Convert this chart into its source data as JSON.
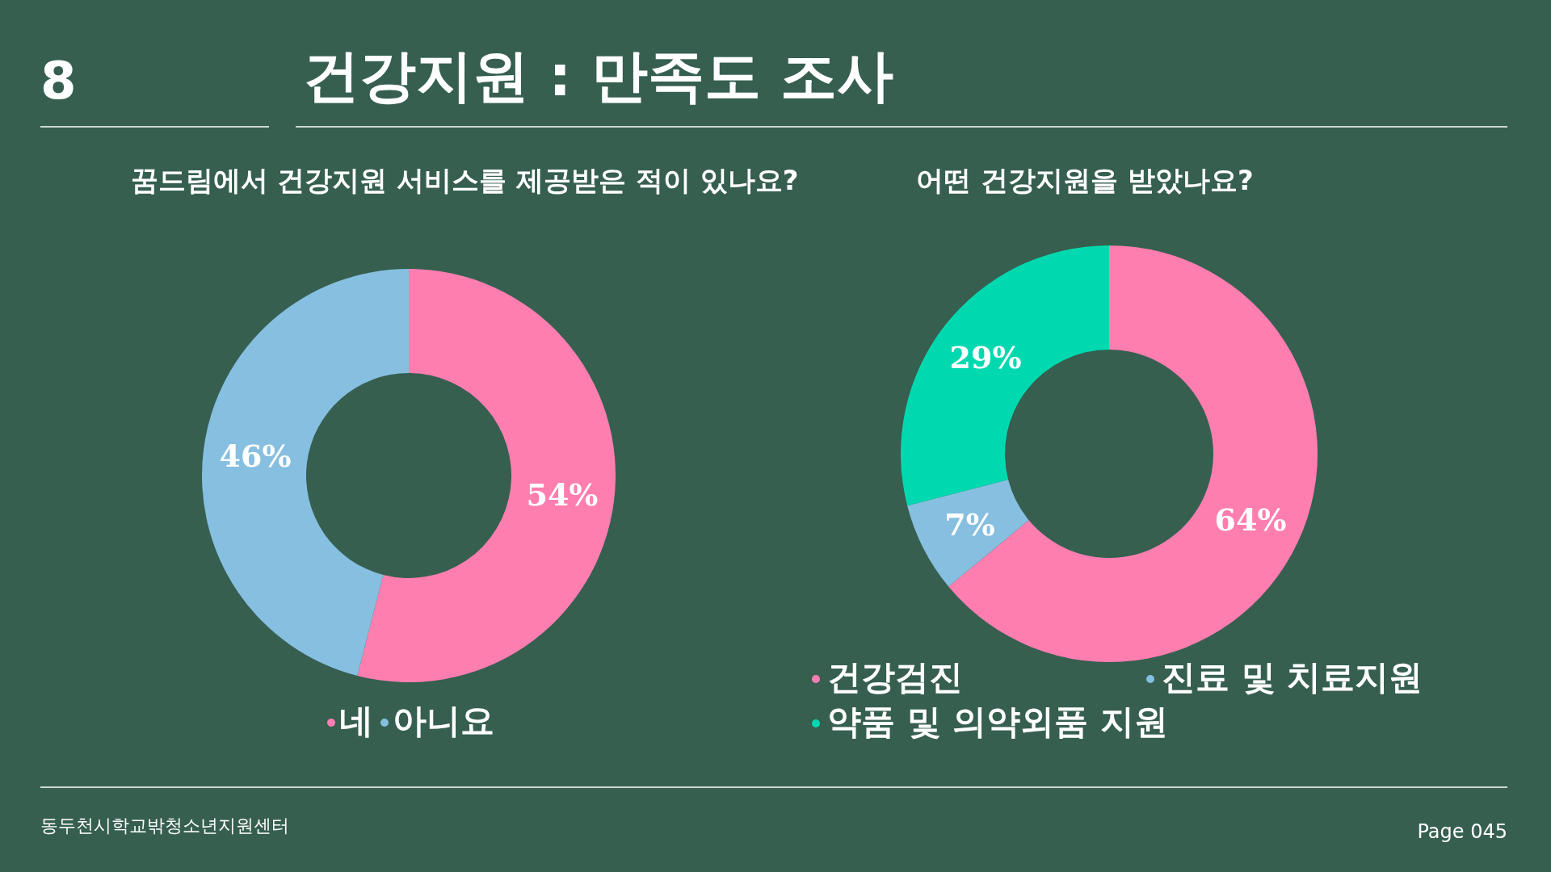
{
  "chart_data": [
    {
      "type": "donut",
      "title": "꿈드림에서 건강지원 서비스를 제공받은 적이 있나요?",
      "categories": [
        "네",
        "아니요"
      ],
      "values": [
        54,
        46
      ],
      "value_labels": [
        "54%",
        "46%"
      ],
      "colors": [
        "#ff7eb0",
        "#86bfe0"
      ],
      "legend": "bottom",
      "annotations": [
        "8",
        "건강지원 : 만족도 조사",
        "동두천시학교밖청소년지원센터",
        "Page 045"
      ]
    },
    {
      "type": "donut",
      "title": "어떤 건강지원을 받았나요?",
      "categories": [
        "건강검진",
        "진료 및 치료지원",
        "약품 및 의약외품 지원"
      ],
      "values": [
        64,
        7,
        29
      ],
      "value_labels": [
        "64%",
        "7%",
        "29%"
      ],
      "colors": [
        "#ff7eb0",
        "#86bfe0",
        "#00d9b0"
      ],
      "legend": "bottom"
    }
  ]
}
